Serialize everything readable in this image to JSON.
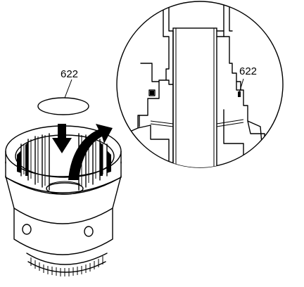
{
  "callouts": {
    "left_label": "622",
    "right_label": "622"
  },
  "colors": {
    "ink": "#000000",
    "paper": "#ffffff"
  },
  "icons": {
    "install_arrow": "down-arrow-icon",
    "rotate_arrow": "curved-arrow-icon"
  }
}
